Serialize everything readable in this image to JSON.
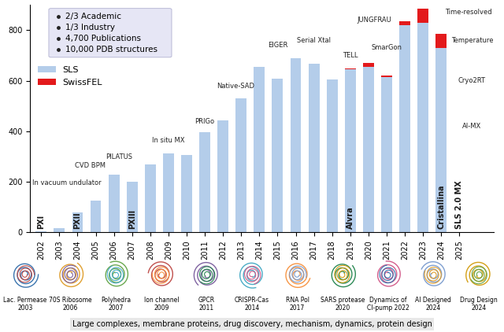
{
  "chart_data": {
    "type": "bar",
    "categories": [
      "2002",
      "2003",
      "2004",
      "2005",
      "2006",
      "2007",
      "2008",
      "2009",
      "2010",
      "2011",
      "2012",
      "2013",
      "2014",
      "2015",
      "2016",
      "2017",
      "2018",
      "2019",
      "2020",
      "2021",
      "2022",
      "2023",
      "2024",
      "2025"
    ],
    "series": [
      {
        "name": "SLS",
        "color": "#b4cdea",
        "values": [
          3,
          18,
          80,
          125,
          228,
          200,
          270,
          312,
          305,
          398,
          442,
          532,
          655,
          608,
          690,
          668,
          605,
          645,
          655,
          615,
          820,
          830,
          730,
          0
        ]
      },
      {
        "name": "SwissFEL",
        "color": "#e31a1c",
        "values": [
          0,
          0,
          0,
          0,
          0,
          0,
          0,
          0,
          0,
          0,
          0,
          0,
          0,
          0,
          0,
          0,
          0,
          5,
          15,
          5,
          15,
          55,
          55,
          0
        ]
      }
    ],
    "stacked": true,
    "ylim": [
      0,
      900
    ],
    "yticks": [
      0,
      200,
      400,
      600,
      800
    ],
    "grid": false,
    "legend": "upper left",
    "annotations": [
      {
        "text": "In vacuum undulator",
        "category": "2002"
      },
      {
        "text": "CVD BPM",
        "category": "2004"
      },
      {
        "text": "PILATUS",
        "category": "2006"
      },
      {
        "text": "In situ MX",
        "category": "2009"
      },
      {
        "text": "PRIGo",
        "category": "2011"
      },
      {
        "text": "Native-SAD",
        "category": "2013"
      },
      {
        "text": "EIGER",
        "category": "2015"
      },
      {
        "text": "Serial Xtal",
        "category": "2017"
      },
      {
        "text": "TELL",
        "category": "2019"
      },
      {
        "text": "SmarGon",
        "category": "2021"
      },
      {
        "text": "JUNGFRAU",
        "category": "2022"
      },
      {
        "text": "Time-resolved",
        "category": "2024"
      },
      {
        "text": "Temperature",
        "category": "2025"
      },
      {
        "text": "Cryo2RT",
        "category": "2025"
      },
      {
        "text": "AI-MX",
        "category": "2025"
      }
    ],
    "beamlines": [
      {
        "text": "PXI",
        "category": "2002"
      },
      {
        "text": "PXII",
        "category": "2004"
      },
      {
        "text": "PXIII",
        "category": "2007"
      },
      {
        "text": "Alvra",
        "category": "2019"
      },
      {
        "text": "Cristallina",
        "category": "2024"
      },
      {
        "text": "SLS 2.0 MX",
        "category": "2025"
      }
    ]
  },
  "info_box": [
    "2/3 Academic",
    "1/3 Industry",
    "4,700 Publications",
    "10,000 PDB structures"
  ],
  "structures": [
    "Lac. Permease\n2003",
    "70S Ribosome\n2006",
    "Polyhedra\n2007",
    "Ion channel\n2009",
    "GPCR\n2011",
    "CRISPR-Cas\n2014",
    "RNA Pol\n2017",
    "SARS protease\n2020",
    "Dynamics of\nCl-pump 2022",
    "AI Designed\n2024",
    "Drug Design\n2024"
  ],
  "footer": "Large complexes, membrane proteins, drug discovery, mechanism, dynamics, protein design"
}
